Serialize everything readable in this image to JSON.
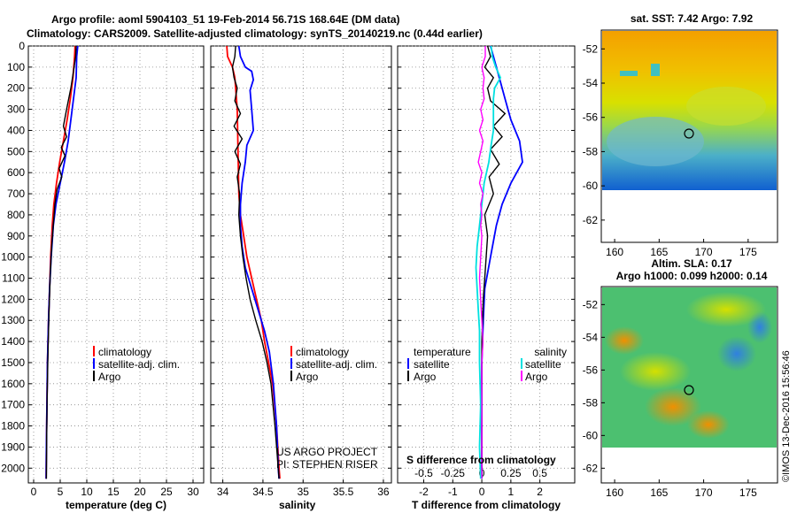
{
  "header": {
    "line1": "Argo profile: aoml 5904103_51 19-Feb-2014 56.71S 168.64E (DM data)",
    "line2": "Climatology: CARS2009. Satellite-adjusted climatology: synTS_20140219.nc (0.44d earlier)"
  },
  "colors": {
    "climatology": "#ff0000",
    "satellite": "#0000ff",
    "argo": "#000000",
    "satellite_salinity": "#00e0e0",
    "argo_salinity": "#ff00ff"
  },
  "credits": {
    "project": "US ARGO PROJECT",
    "pi": "PI: STEPHEN RISER",
    "stamp": "©IMOS 13-Dec-2016 15:56:46"
  },
  "chart_data": [
    {
      "type": "line",
      "panel": "temperature",
      "xlabel": "temperature (deg C)",
      "xlim": [
        -1,
        32
      ],
      "xticks": [
        "0",
        "5",
        "10",
        "15",
        "20",
        "25",
        "30"
      ],
      "ylim": [
        2070,
        0
      ],
      "yticks": [
        "0",
        "100",
        "200",
        "300",
        "400",
        "500",
        "600",
        "700",
        "800",
        "900",
        "1000",
        "1100",
        "1200",
        "1300",
        "1400",
        "1500",
        "1600",
        "1700",
        "1800",
        "1900",
        "2000"
      ],
      "legend": [
        "climatology",
        "satellite-adj. clim.",
        "Argo"
      ],
      "series": [
        {
          "name": "climatology",
          "color": "#ff0000",
          "points": [
            [
              7.8,
              0
            ],
            [
              7.7,
              50
            ],
            [
              7.4,
              150
            ],
            [
              6.9,
              250
            ],
            [
              6.3,
              350
            ],
            [
              5.6,
              450
            ],
            [
              4.9,
              550
            ],
            [
              4.3,
              650
            ],
            [
              3.8,
              750
            ],
            [
              3.5,
              850
            ],
            [
              3.2,
              1000
            ],
            [
              3.0,
              1150
            ],
            [
              2.8,
              1300
            ],
            [
              2.6,
              1500
            ],
            [
              2.5,
              1700
            ],
            [
              2.4,
              1900
            ],
            [
              2.35,
              2050
            ]
          ]
        },
        {
          "name": "satellite-adj. clim.",
          "color": "#0000ff",
          "points": [
            [
              8.3,
              0
            ],
            [
              8.1,
              50
            ],
            [
              8.0,
              150
            ],
            [
              7.5,
              250
            ],
            [
              7.0,
              350
            ],
            [
              6.5,
              450
            ],
            [
              5.8,
              550
            ],
            [
              5.0,
              650
            ],
            [
              4.2,
              750
            ],
            [
              3.7,
              850
            ],
            [
              3.3,
              1000
            ],
            [
              3.0,
              1150
            ],
            [
              2.8,
              1300
            ],
            [
              2.6,
              1500
            ],
            [
              2.5,
              1700
            ],
            [
              2.4,
              1900
            ],
            [
              2.35,
              2050
            ]
          ]
        },
        {
          "name": "Argo",
          "color": "#000000",
          "points": [
            [
              8.0,
              0
            ],
            [
              7.9,
              50
            ],
            [
              7.5,
              120
            ],
            [
              7.0,
              200
            ],
            [
              6.2,
              300
            ],
            [
              5.6,
              380
            ],
            [
              6.2,
              430
            ],
            [
              5.2,
              480
            ],
            [
              5.9,
              520
            ],
            [
              4.8,
              580
            ],
            [
              5.3,
              620
            ],
            [
              4.4,
              680
            ],
            [
              4.0,
              750
            ],
            [
              3.7,
              850
            ],
            [
              3.4,
              950
            ],
            [
              3.1,
              1100
            ],
            [
              2.9,
              1250
            ],
            [
              2.7,
              1450
            ],
            [
              2.55,
              1650
            ],
            [
              2.45,
              1850
            ],
            [
              2.4,
              2050
            ]
          ]
        }
      ]
    },
    {
      "type": "line",
      "panel": "salinity",
      "xlabel": "salinity",
      "xlim": [
        33.85,
        36.1
      ],
      "xticks": [
        "34",
        "34.5",
        "35",
        "35.5",
        "36"
      ],
      "ylim": [
        2070,
        0
      ],
      "legend": [
        "climatology",
        "satellite-adj. clim.",
        "Argo"
      ],
      "series": [
        {
          "name": "climatology",
          "color": "#ff0000",
          "points": [
            [
              34.05,
              0
            ],
            [
              34.06,
              50
            ],
            [
              34.12,
              100
            ],
            [
              34.15,
              150
            ],
            [
              34.16,
              200
            ],
            [
              34.18,
              300
            ],
            [
              34.19,
              500
            ],
            [
              34.2,
              700
            ],
            [
              34.22,
              800
            ],
            [
              34.26,
              900
            ],
            [
              34.3,
              1000
            ],
            [
              34.36,
              1100
            ],
            [
              34.42,
              1200
            ],
            [
              34.48,
              1300
            ],
            [
              34.52,
              1400
            ],
            [
              34.57,
              1500
            ],
            [
              34.62,
              1600
            ],
            [
              34.67,
              1800
            ],
            [
              34.7,
              2000
            ],
            [
              34.71,
              2050
            ]
          ]
        },
        {
          "name": "satellite-adj. clim.",
          "color": "#0000ff",
          "points": [
            [
              34.2,
              0
            ],
            [
              34.22,
              50
            ],
            [
              34.28,
              100
            ],
            [
              34.36,
              120
            ],
            [
              34.38,
              160
            ],
            [
              34.34,
              210
            ],
            [
              34.36,
              300
            ],
            [
              34.38,
              400
            ],
            [
              34.3,
              470
            ],
            [
              34.28,
              550
            ],
            [
              34.24,
              650
            ],
            [
              34.22,
              750
            ],
            [
              34.22,
              850
            ],
            [
              34.24,
              950
            ],
            [
              34.28,
              1050
            ],
            [
              34.36,
              1150
            ],
            [
              34.44,
              1250
            ],
            [
              34.52,
              1350
            ],
            [
              34.58,
              1450
            ],
            [
              34.63,
              1600
            ],
            [
              34.67,
              1800
            ],
            [
              34.69,
              2000
            ],
            [
              34.7,
              2050
            ]
          ]
        },
        {
          "name": "Argo",
          "color": "#000000",
          "points": [
            [
              34.16,
              0
            ],
            [
              34.15,
              50
            ],
            [
              34.12,
              100
            ],
            [
              34.14,
              150
            ],
            [
              34.18,
              200
            ],
            [
              34.15,
              260
            ],
            [
              34.22,
              320
            ],
            [
              34.14,
              380
            ],
            [
              34.24,
              440
            ],
            [
              34.15,
              500
            ],
            [
              34.22,
              560
            ],
            [
              34.18,
              620
            ],
            [
              34.21,
              700
            ],
            [
              34.2,
              800
            ],
            [
              34.22,
              900
            ],
            [
              34.25,
              1000
            ],
            [
              34.29,
              1100
            ],
            [
              34.34,
              1200
            ],
            [
              34.41,
              1300
            ],
            [
              34.49,
              1400
            ],
            [
              34.55,
              1500
            ],
            [
              34.6,
              1600
            ],
            [
              34.65,
              1800
            ],
            [
              34.69,
              2000
            ],
            [
              34.7,
              2050
            ]
          ]
        }
      ]
    },
    {
      "type": "line",
      "panel": "difference",
      "xlabel": "T difference from climatology",
      "xlim": [
        -2.9,
        3.2
      ],
      "xticks": [
        "-2",
        "-1",
        "0",
        "1",
        "2"
      ],
      "secondary_axis_label": "S difference from climatology",
      "secondary_xticks": [
        "-0.5",
        "-0.25",
        "0",
        "0.25",
        "0.5"
      ],
      "ylim": [
        2070,
        0
      ],
      "legend_temperature_title": "temperature",
      "legend_salinity_title": "salinity",
      "legend_temperature": [
        "satellite",
        "Argo"
      ],
      "legend_salinity": [
        "satellite",
        "Argo"
      ],
      "series": [
        {
          "name": "satellite",
          "variable": "temperature",
          "color": "#0000ff",
          "points": [
            [
              0.3,
              0
            ],
            [
              0.4,
              50
            ],
            [
              0.6,
              150
            ],
            [
              0.8,
              250
            ],
            [
              1.0,
              350
            ],
            [
              1.3,
              450
            ],
            [
              1.4,
              550
            ],
            [
              1.0,
              650
            ],
            [
              0.7,
              750
            ],
            [
              0.5,
              850
            ],
            [
              0.3,
              1000
            ],
            [
              0.1,
              1150
            ],
            [
              0.05,
              1300
            ],
            [
              0.0,
              1500
            ],
            [
              0.0,
              2050
            ]
          ]
        },
        {
          "name": "Argo",
          "variable": "temperature",
          "color": "#000000",
          "points": [
            [
              0.2,
              0
            ],
            [
              0.3,
              50
            ],
            [
              0.1,
              100
            ],
            [
              0.4,
              150
            ],
            [
              0.2,
              200
            ],
            [
              0.3,
              260
            ],
            [
              0.8,
              320
            ],
            [
              0.4,
              380
            ],
            [
              0.7,
              430
            ],
            [
              0.3,
              490
            ],
            [
              0.6,
              560
            ],
            [
              0.25,
              620
            ],
            [
              0.4,
              700
            ],
            [
              0.1,
              800
            ],
            [
              0.2,
              900
            ],
            [
              0.15,
              1000
            ],
            [
              0.1,
              1100
            ],
            [
              0.05,
              1200
            ],
            [
              0.0,
              1400
            ],
            [
              0.0,
              1700
            ],
            [
              0.0,
              2050
            ]
          ]
        },
        {
          "name": "satellite",
          "variable": "salinity",
          "color": "#00e0e0",
          "points": [
            [
              0.08,
              0
            ],
            [
              0.09,
              50
            ],
            [
              0.12,
              100
            ],
            [
              0.16,
              150
            ],
            [
              0.11,
              200
            ],
            [
              0.1,
              250
            ],
            [
              0.1,
              300
            ],
            [
              0.1,
              350
            ],
            [
              0.1,
              400
            ],
            [
              0.08,
              470
            ],
            [
              0.06,
              550
            ],
            [
              0.02,
              650
            ],
            [
              0.0,
              750
            ],
            [
              -0.02,
              850
            ],
            [
              -0.04,
              950
            ],
            [
              -0.05,
              1050
            ],
            [
              -0.04,
              1150
            ],
            [
              -0.03,
              1250
            ],
            [
              -0.02,
              1350
            ],
            [
              -0.02,
              1500
            ],
            [
              -0.01,
              1700
            ],
            [
              -0.02,
              1900
            ],
            [
              -0.01,
              2050
            ]
          ]
        },
        {
          "name": "Argo",
          "variable": "salinity",
          "color": "#ff00ff",
          "points": [
            [
              0.03,
              0
            ],
            [
              0.03,
              50
            ],
            [
              0.0,
              100
            ],
            [
              0.02,
              150
            ],
            [
              0.01,
              200
            ],
            [
              0.02,
              250
            ],
            [
              -0.01,
              300
            ],
            [
              0.01,
              350
            ],
            [
              -0.02,
              400
            ],
            [
              0.01,
              450
            ],
            [
              -0.01,
              500
            ],
            [
              -0.03,
              550
            ],
            [
              0.0,
              600
            ],
            [
              -0.02,
              650
            ],
            [
              0.01,
              700
            ],
            [
              -0.01,
              750
            ],
            [
              0.0,
              800
            ],
            [
              -0.01,
              850
            ],
            [
              0.0,
              900
            ],
            [
              -0.01,
              1000
            ],
            [
              -0.02,
              1100
            ],
            [
              -0.01,
              1200
            ],
            [
              0.0,
              1300
            ],
            [
              0.01,
              1400
            ],
            [
              0.0,
              1500
            ],
            [
              0.0,
              1700
            ],
            [
              0.0,
              1900
            ],
            [
              0.0,
              2050
            ]
          ]
        }
      ]
    },
    {
      "type": "heatmap",
      "panel": "satellite SST map",
      "title": "sat. SST: 7.42  Argo: 7.92",
      "xticks": [
        "160",
        "165",
        "170",
        "175"
      ],
      "yticks": [
        "-52",
        "-54",
        "-56",
        "-58",
        "-60",
        "-62"
      ],
      "profile_location": {
        "lon": 168.64,
        "lat": -56.71
      }
    },
    {
      "type": "heatmap",
      "panel": "altimetry SLA map",
      "title_line1": "Altim. SLA: 0.17",
      "title_line2": "Argo h1000: 0.099  h2000: 0.14",
      "xticks": [
        "160",
        "165",
        "170",
        "175"
      ],
      "yticks": [
        "-52",
        "-54",
        "-56",
        "-58",
        "-60",
        "-62"
      ],
      "profile_location": {
        "lon": 168.64,
        "lat": -56.71
      }
    }
  ]
}
